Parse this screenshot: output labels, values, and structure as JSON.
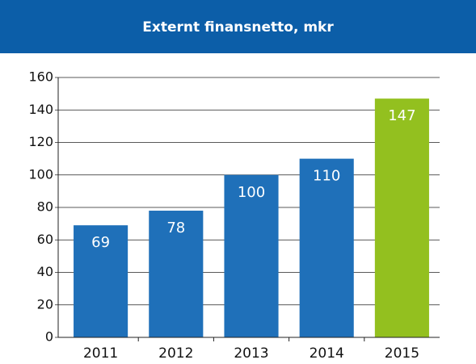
{
  "chart_data": {
    "type": "bar",
    "title": "Externt finansnetto, mkr",
    "categories": [
      "2011",
      "2012",
      "2013",
      "2014",
      "2015"
    ],
    "values": [
      69,
      78,
      100,
      110,
      147
    ],
    "colors": [
      "#1f70b9",
      "#1f70b9",
      "#1f70b9",
      "#1f70b9",
      "#93c01f"
    ],
    "ylim": [
      0,
      160
    ],
    "yticks": [
      0,
      20,
      40,
      60,
      80,
      100,
      120,
      140,
      160
    ],
    "grid": true
  }
}
